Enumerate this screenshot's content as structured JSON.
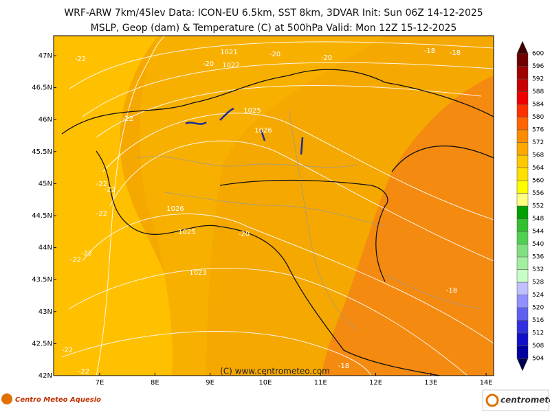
{
  "header": {
    "line1": "WRF-ARW 7km/45lev   Data: ICON-EU 6.5km, SST 8km, 3DVAR   Init: Sun 06Z 14-12-2025",
    "line2": "MSLP, Geop (dam) & Temperature (C) at 500hPa   Valid: Mon 12Z 15-12-2025"
  },
  "map": {
    "lat_labels": [
      "47N",
      "46.5N",
      "46N",
      "45.5N",
      "45N",
      "44.5N",
      "44N",
      "43.5N",
      "43N",
      "42.5N",
      "42N"
    ],
    "lon_labels": [
      "7E",
      "8E",
      "9E",
      "10E",
      "11E",
      "12E",
      "13E",
      "14E"
    ],
    "contour_labels": [
      1021,
      -20,
      -20,
      -18,
      -18,
      -22,
      -20,
      1022,
      1025,
      1026,
      -22,
      -22,
      -22,
      -22,
      1026,
      1025,
      -20,
      -22,
      -22,
      1023,
      -18,
      -22,
      -22,
      -18
    ],
    "copyright": "(C) www.centrometeo.com"
  },
  "colorbar": {
    "levels": [
      504,
      508,
      512,
      516,
      520,
      524,
      528,
      532,
      536,
      540,
      544,
      548,
      552,
      556,
      560,
      564,
      568,
      572,
      576,
      580,
      584,
      588,
      592,
      596,
      600
    ],
    "colors": [
      "#000050",
      "#0000a0",
      "#1010c8",
      "#3030e0",
      "#6060f0",
      "#9090ff",
      "#c0c0ff",
      "#c8ffc8",
      "#a0f0a0",
      "#80e080",
      "#50d050",
      "#30c030",
      "#00a000",
      "#ffff80",
      "#ffff00",
      "#ffe000",
      "#ffc800",
      "#ffa800",
      "#ff8c00",
      "#ff6400",
      "#ff3000",
      "#f00000",
      "#c80000",
      "#a00000",
      "#700000",
      "#400000"
    ]
  },
  "footer": {
    "left_logo": "Centro Meteo Aquesio",
    "right_logo": "centrometeo"
  }
}
